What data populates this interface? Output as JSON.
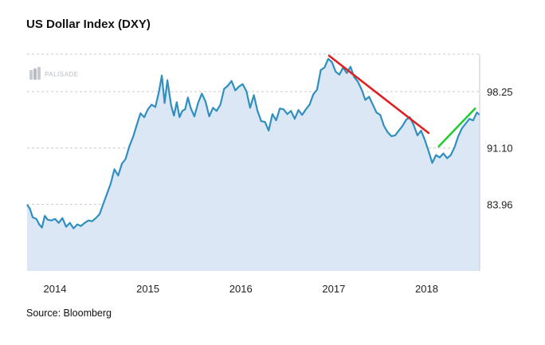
{
  "title": "US Dollar Index (DXY)",
  "source": "Source: Bloomberg",
  "logo": {
    "text": "PALISADE",
    "icon": "palisade-logo-icon"
  },
  "colors": {
    "line": "#2f8fc0",
    "area": "#dbe7f4",
    "downtrend": "#e02020",
    "uptrend": "#22cc33",
    "grid": "#c8c8c8"
  },
  "chart_data": {
    "type": "area",
    "title": "US Dollar Index (DXY)",
    "xlabel": "",
    "ylabel": "",
    "x_ticks": [
      "2014",
      "2015",
      "2016",
      "2017",
      "2018"
    ],
    "y_ticks": [
      "98.25",
      "91.10",
      "83.96"
    ],
    "y_tick_values": [
      98.25,
      91.1,
      83.96
    ],
    "ylim": [
      75.5,
      103.0
    ],
    "xlim": [
      2013.7,
      2018.57
    ],
    "grid": "horizontal dashed",
    "series": [
      {
        "values": [
          [
            2013.7,
            83.9
          ],
          [
            2013.73,
            83.4
          ],
          [
            2013.76,
            82.3
          ],
          [
            2013.8,
            82.1
          ],
          [
            2013.83,
            81.4
          ],
          [
            2013.86,
            81.0
          ],
          [
            2013.89,
            82.5
          ],
          [
            2013.92,
            82.0
          ],
          [
            2013.96,
            81.9
          ],
          [
            2014.0,
            82.1
          ],
          [
            2014.04,
            81.6
          ],
          [
            2014.08,
            82.2
          ],
          [
            2014.12,
            81.1
          ],
          [
            2014.16,
            81.6
          ],
          [
            2014.2,
            80.9
          ],
          [
            2014.24,
            81.4
          ],
          [
            2014.28,
            81.2
          ],
          [
            2014.32,
            81.6
          ],
          [
            2014.36,
            81.9
          ],
          [
            2014.4,
            81.8
          ],
          [
            2014.44,
            82.2
          ],
          [
            2014.48,
            82.7
          ],
          [
            2014.52,
            84.0
          ],
          [
            2014.56,
            85.3
          ],
          [
            2014.6,
            86.6
          ],
          [
            2014.64,
            88.4
          ],
          [
            2014.68,
            87.6
          ],
          [
            2014.72,
            89.1
          ],
          [
            2014.76,
            89.7
          ],
          [
            2014.8,
            91.3
          ],
          [
            2014.84,
            92.5
          ],
          [
            2014.88,
            94.0
          ],
          [
            2014.92,
            95.5
          ],
          [
            2014.96,
            95.0
          ],
          [
            2015.0,
            96.0
          ],
          [
            2015.04,
            96.6
          ],
          [
            2015.08,
            96.3
          ],
          [
            2015.12,
            98.3
          ],
          [
            2015.15,
            100.3
          ],
          [
            2015.18,
            96.8
          ],
          [
            2015.21,
            99.7
          ],
          [
            2015.25,
            96.5
          ],
          [
            2015.28,
            95.2
          ],
          [
            2015.31,
            96.9
          ],
          [
            2015.34,
            95.0
          ],
          [
            2015.37,
            95.8
          ],
          [
            2015.4,
            96.0
          ],
          [
            2015.43,
            97.5
          ],
          [
            2015.46,
            96.2
          ],
          [
            2015.5,
            95.1
          ],
          [
            2015.54,
            96.8
          ],
          [
            2015.58,
            98.0
          ],
          [
            2015.62,
            97.0
          ],
          [
            2015.66,
            95.1
          ],
          [
            2015.7,
            96.2
          ],
          [
            2015.74,
            95.8
          ],
          [
            2015.78,
            96.6
          ],
          [
            2015.82,
            98.6
          ],
          [
            2015.86,
            99.0
          ],
          [
            2015.9,
            99.6
          ],
          [
            2015.94,
            98.4
          ],
          [
            2015.98,
            98.9
          ],
          [
            2016.02,
            99.2
          ],
          [
            2016.06,
            98.3
          ],
          [
            2016.1,
            96.2
          ],
          [
            2016.14,
            97.8
          ],
          [
            2016.18,
            95.8
          ],
          [
            2016.22,
            94.5
          ],
          [
            2016.26,
            94.4
          ],
          [
            2016.3,
            93.3
          ],
          [
            2016.34,
            95.4
          ],
          [
            2016.38,
            94.6
          ],
          [
            2016.42,
            96.1
          ],
          [
            2016.46,
            96.0
          ],
          [
            2016.5,
            95.4
          ],
          [
            2016.54,
            95.8
          ],
          [
            2016.58,
            94.8
          ],
          [
            2016.62,
            95.9
          ],
          [
            2016.66,
            95.3
          ],
          [
            2016.7,
            96.0
          ],
          [
            2016.74,
            96.6
          ],
          [
            2016.78,
            97.9
          ],
          [
            2016.82,
            98.5
          ],
          [
            2016.86,
            101.0
          ],
          [
            2016.9,
            101.3
          ],
          [
            2016.94,
            102.4
          ],
          [
            2016.98,
            102.0
          ],
          [
            2017.02,
            100.8
          ],
          [
            2017.06,
            100.4
          ],
          [
            2017.1,
            101.3
          ],
          [
            2017.14,
            100.6
          ],
          [
            2017.18,
            101.4
          ],
          [
            2017.22,
            100.1
          ],
          [
            2017.26,
            99.5
          ],
          [
            2017.3,
            98.5
          ],
          [
            2017.34,
            97.2
          ],
          [
            2017.38,
            97.6
          ],
          [
            2017.42,
            96.6
          ],
          [
            2017.46,
            95.6
          ],
          [
            2017.5,
            95.3
          ],
          [
            2017.54,
            93.9
          ],
          [
            2017.58,
            93.1
          ],
          [
            2017.62,
            92.6
          ],
          [
            2017.66,
            92.7
          ],
          [
            2017.7,
            93.3
          ],
          [
            2017.74,
            93.9
          ],
          [
            2017.78,
            94.7
          ],
          [
            2017.82,
            95.0
          ],
          [
            2017.86,
            94.0
          ],
          [
            2017.9,
            92.7
          ],
          [
            2017.94,
            93.3
          ],
          [
            2017.98,
            92.1
          ],
          [
            2018.02,
            90.7
          ],
          [
            2018.06,
            89.2
          ],
          [
            2018.1,
            90.2
          ],
          [
            2018.14,
            89.9
          ],
          [
            2018.18,
            90.4
          ],
          [
            2018.22,
            89.8
          ],
          [
            2018.26,
            90.2
          ],
          [
            2018.3,
            91.2
          ],
          [
            2018.34,
            92.6
          ],
          [
            2018.38,
            93.6
          ],
          [
            2018.42,
            94.2
          ],
          [
            2018.46,
            94.8
          ],
          [
            2018.5,
            94.6
          ],
          [
            2018.54,
            95.6
          ],
          [
            2018.57,
            95.3
          ]
        ]
      }
    ],
    "annotations": [
      {
        "type": "trendline",
        "color": "red",
        "from": [
          2016.95,
          102.8
        ],
        "to": [
          2018.02,
          93.0
        ]
      },
      {
        "type": "trendline",
        "color": "green",
        "from": [
          2018.13,
          91.3
        ],
        "to": [
          2018.52,
          96.1
        ]
      }
    ]
  }
}
